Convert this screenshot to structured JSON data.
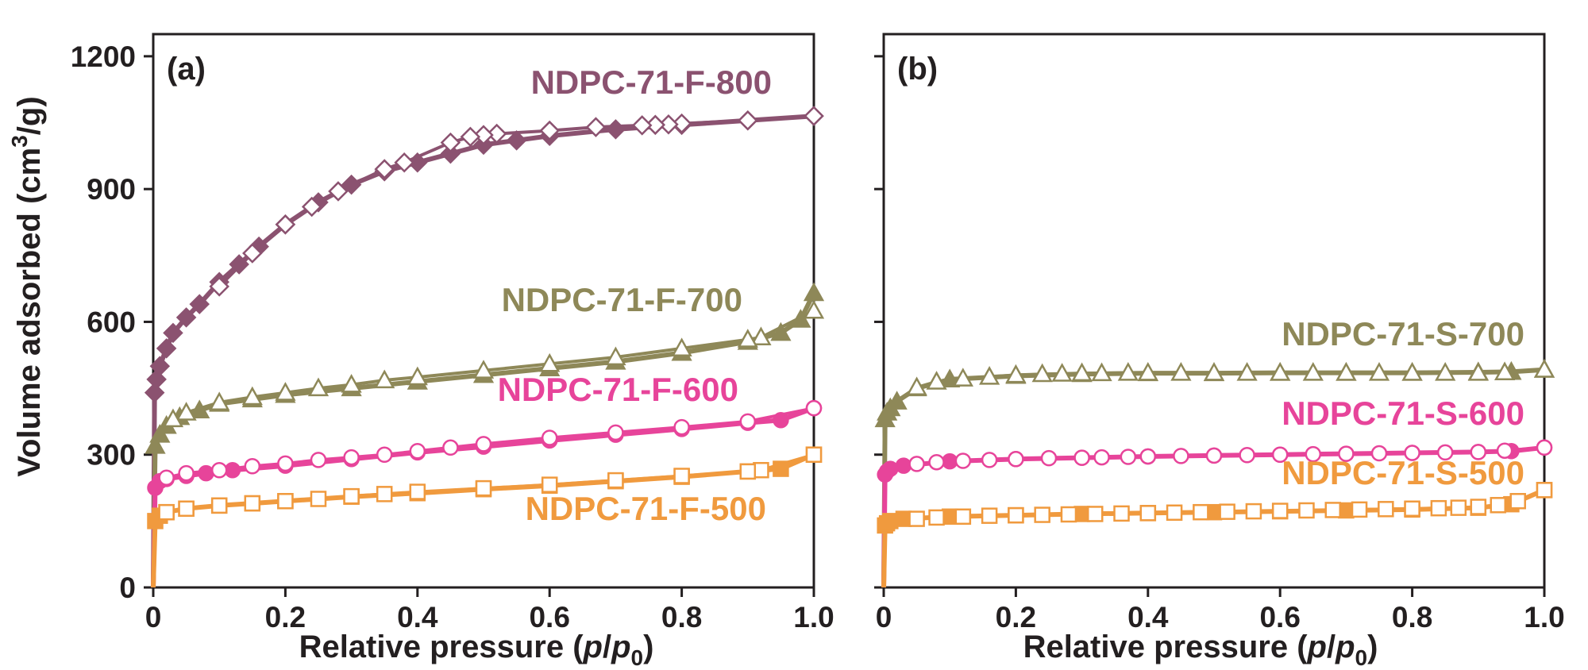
{
  "y_title": {
    "main": "Volume adsorbed (cm",
    "sup": "3",
    "tail": "/g)"
  },
  "x_title": {
    "main": "Relative pressure (",
    "p": "p",
    "slash": "/",
    "p2": "p",
    "sub": "0",
    "tail": ")"
  },
  "colors": {
    "800": "#8b5270",
    "700": "#8e8858",
    "600": "#e7449a",
    "500": "#f09a3e",
    "axis": "#231f20"
  },
  "chart_data": [
    {
      "type": "line",
      "panel_label": "(a)",
      "xlim": [
        0,
        1.0
      ],
      "ylim": [
        0,
        1250
      ],
      "xticks": [
        "0",
        "0.2",
        "0.4",
        "0.6",
        "0.8",
        "1.0"
      ],
      "yticks": [
        "0",
        "300",
        "600",
        "900",
        "1200"
      ],
      "series": [
        {
          "name": "NDPC-71-F-800",
          "color_key": "800",
          "marker": "diamond",
          "adsorption": {
            "x": [
              0.0,
              0.002,
              0.005,
              0.01,
              0.02,
              0.03,
              0.05,
              0.07,
              0.1,
              0.13,
              0.16,
              0.2,
              0.25,
              0.3,
              0.35,
              0.4,
              0.45,
              0.5,
              0.55,
              0.6,
              0.7,
              0.8,
              0.9,
              1.0
            ],
            "y": [
              0,
              440,
              470,
              500,
              540,
              575,
              610,
              640,
              690,
              730,
              770,
              820,
              870,
              910,
              940,
              960,
              980,
              1000,
              1010,
              1020,
              1035,
              1045,
              1055,
              1065
            ]
          },
          "desorption": {
            "x": [
              1.0,
              0.9,
              0.8,
              0.78,
              0.76,
              0.74,
              0.67,
              0.6,
              0.52,
              0.5,
              0.48,
              0.45,
              0.38,
              0.35,
              0.28,
              0.24,
              0.2,
              0.15,
              0.1
            ],
            "y": [
              1065,
              1055,
              1048,
              1046,
              1045,
              1044,
              1040,
              1032,
              1025,
              1022,
              1018,
              1005,
              960,
              945,
              895,
              860,
              820,
              755,
              680
            ]
          }
        },
        {
          "name": "NDPC-71-F-700",
          "color_key": "700",
          "marker": "triangle",
          "adsorption": {
            "x": [
              0.0,
              0.003,
              0.01,
              0.02,
              0.04,
              0.07,
              0.1,
              0.15,
              0.2,
              0.3,
              0.4,
              0.5,
              0.6,
              0.7,
              0.8,
              0.9,
              0.95,
              0.98,
              1.0
            ],
            "y": [
              0,
              320,
              345,
              365,
              385,
              400,
              415,
              425,
              435,
              450,
              465,
              480,
              495,
              510,
              530,
              555,
              575,
              605,
              665
            ]
          },
          "desorption": {
            "x": [
              1.0,
              0.92,
              0.9,
              0.8,
              0.7,
              0.6,
              0.5,
              0.4,
              0.35,
              0.3,
              0.25,
              0.2,
              0.15,
              0.1,
              0.05,
              0.03
            ],
            "y": [
              625,
              565,
              560,
              540,
              520,
              505,
              490,
              475,
              468,
              458,
              450,
              440,
              430,
              418,
              395,
              380
            ]
          }
        },
        {
          "name": "NDPC-71-F-600",
          "color_key": "600",
          "marker": "circle",
          "adsorption": {
            "x": [
              0.0,
              0.003,
              0.01,
              0.02,
              0.05,
              0.08,
              0.12,
              0.2,
              0.3,
              0.4,
              0.5,
              0.6,
              0.7,
              0.8,
              0.9,
              0.95,
              1.0
            ],
            "y": [
              0,
              225,
              240,
              245,
              252,
              258,
              265,
              275,
              290,
              305,
              318,
              332,
              345,
              358,
              372,
              378,
              405
            ]
          },
          "desorption": {
            "x": [
              1.0,
              0.9,
              0.8,
              0.7,
              0.6,
              0.5,
              0.45,
              0.4,
              0.35,
              0.3,
              0.25,
              0.2,
              0.15,
              0.1,
              0.05,
              0.02
            ],
            "y": [
              405,
              375,
              362,
              350,
              338,
              324,
              316,
              308,
              300,
              294,
              288,
              280,
              274,
              265,
              258,
              248
            ]
          }
        },
        {
          "name": "NDPC-71-F-500",
          "color_key": "500",
          "marker": "square",
          "adsorption": {
            "x": [
              0.0,
              0.003,
              0.01,
              0.02,
              0.05,
              0.1,
              0.15,
              0.2,
              0.3,
              0.4,
              0.5,
              0.6,
              0.7,
              0.8,
              0.9,
              0.95,
              1.0
            ],
            "y": [
              0,
              150,
              162,
              170,
              178,
              185,
              190,
              195,
              205,
              213,
              222,
              230,
              240,
              250,
              262,
              268,
              300
            ]
          },
          "desorption": {
            "x": [
              1.0,
              0.92,
              0.9,
              0.8,
              0.7,
              0.6,
              0.5,
              0.4,
              0.35,
              0.3,
              0.25,
              0.2,
              0.15,
              0.1,
              0.05,
              0.02
            ],
            "y": [
              300,
              265,
              262,
              252,
              242,
              232,
              224,
              216,
              211,
              206,
              200,
              195,
              190,
              185,
              178,
              170
            ]
          }
        }
      ]
    },
    {
      "type": "line",
      "panel_label": "(b)",
      "xlim": [
        0,
        1.0
      ],
      "ylim": [
        0,
        1250
      ],
      "xticks": [
        "0",
        "0.2",
        "0.4",
        "0.6",
        "0.8",
        "1.0"
      ],
      "yticks": [
        "",
        "",
        "",
        "",
        ""
      ],
      "series": [
        {
          "name": "NDPC-71-S-700",
          "color_key": "700",
          "marker": "triangle",
          "adsorption": {
            "x": [
              0.0,
              0.002,
              0.005,
              0.01,
              0.02,
              0.05,
              0.1,
              0.2,
              0.3,
              0.4,
              0.5,
              0.6,
              0.7,
              0.8,
              0.9,
              0.95,
              1.0
            ],
            "y": [
              0,
              380,
              395,
              405,
              420,
              450,
              470,
              478,
              482,
              484,
              484,
              485,
              485,
              485,
              486,
              487,
              492
            ]
          },
          "desorption": {
            "x": [
              1.0,
              0.94,
              0.9,
              0.85,
              0.8,
              0.75,
              0.7,
              0.65,
              0.6,
              0.55,
              0.5,
              0.45,
              0.4,
              0.37,
              0.33,
              0.3,
              0.27,
              0.24,
              0.2,
              0.16,
              0.12,
              0.08,
              0.05
            ],
            "y": [
              492,
              486,
              485,
              485,
              485,
              485,
              485,
              485,
              485,
              485,
              485,
              485,
              485,
              485,
              484,
              484,
              483,
              482,
              480,
              476,
              472,
              465,
              452
            ]
          }
        },
        {
          "name": "NDPC-71-S-600",
          "color_key": "600",
          "marker": "circle",
          "adsorption": {
            "x": [
              0.0,
              0.002,
              0.005,
              0.01,
              0.03,
              0.1,
              0.2,
              0.3,
              0.4,
              0.5,
              0.6,
              0.7,
              0.8,
              0.9,
              0.95,
              1.0
            ],
            "y": [
              0,
              255,
              262,
              268,
              275,
              285,
              290,
              293,
              296,
              298,
              300,
              302,
              304,
              306,
              308,
              316
            ]
          },
          "desorption": {
            "x": [
              1.0,
              0.94,
              0.9,
              0.85,
              0.8,
              0.75,
              0.7,
              0.65,
              0.6,
              0.55,
              0.5,
              0.45,
              0.4,
              0.37,
              0.33,
              0.3,
              0.25,
              0.2,
              0.16,
              0.12,
              0.08,
              0.05
            ],
            "y": [
              316,
              309,
              306,
              305,
              304,
              303,
              302,
              301,
              300,
              299,
              298,
              297,
              296,
              295,
              294,
              293,
              292,
              290,
              288,
              286,
              283,
              279
            ]
          }
        },
        {
          "name": "NDPC-71-S-500",
          "color_key": "500",
          "marker": "square",
          "adsorption": {
            "x": [
              0.0,
              0.002,
              0.005,
              0.01,
              0.03,
              0.1,
              0.2,
              0.3,
              0.4,
              0.5,
              0.6,
              0.7,
              0.8,
              0.9,
              0.95,
              1.0
            ],
            "y": [
              0,
              140,
              145,
              150,
              155,
              160,
              163,
              166,
              168,
              170,
              172,
              174,
              176,
              180,
              188,
              220
            ]
          },
          "desorption": {
            "x": [
              1.0,
              0.96,
              0.93,
              0.9,
              0.87,
              0.84,
              0.8,
              0.76,
              0.72,
              0.68,
              0.64,
              0.6,
              0.56,
              0.52,
              0.48,
              0.44,
              0.4,
              0.36,
              0.32,
              0.28,
              0.24,
              0.2,
              0.16,
              0.12,
              0.08,
              0.05
            ],
            "y": [
              220,
              195,
              186,
              182,
              180,
              179,
              178,
              177,
              176,
              175,
              174,
              173,
              172,
              171,
              170,
              169,
              168,
              167,
              166,
              165,
              164,
              163,
              162,
              160,
              158,
              155
            ]
          }
        }
      ]
    }
  ]
}
